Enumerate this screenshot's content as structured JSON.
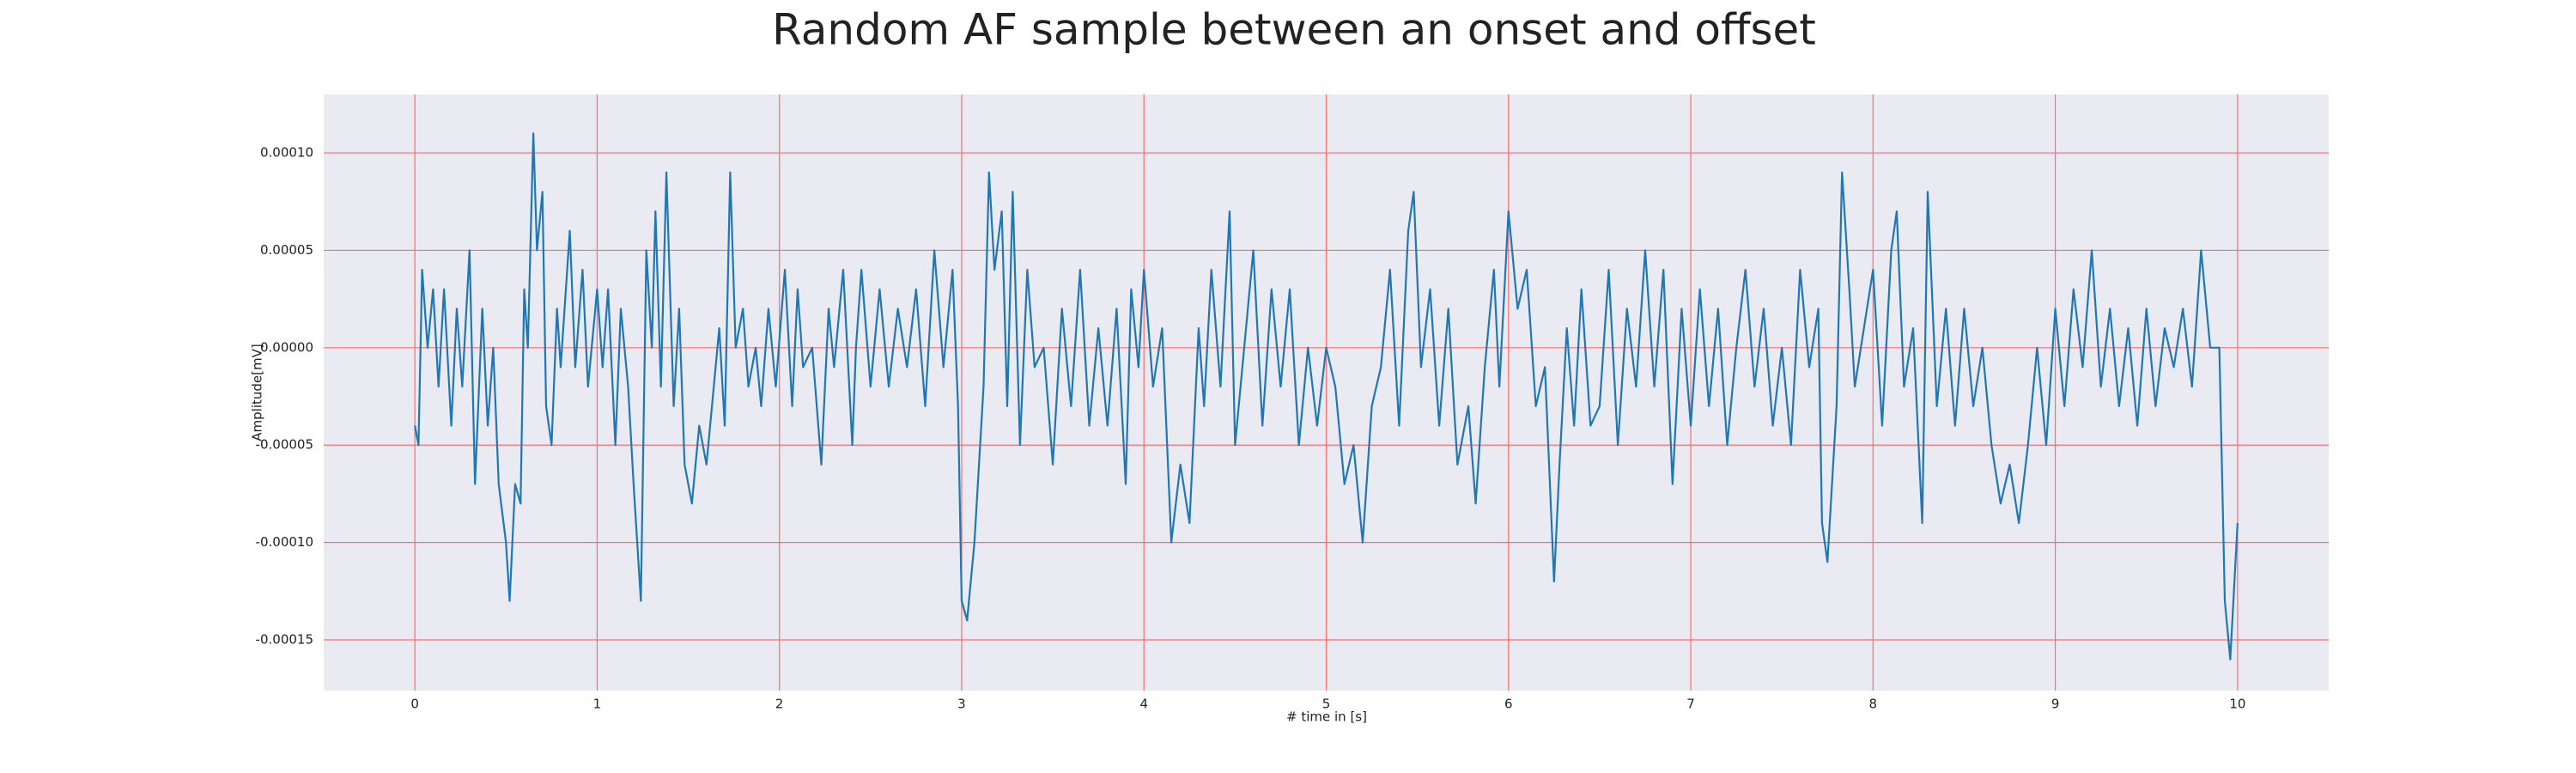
{
  "chart_data": {
    "type": "line",
    "title": "Random AF sample between an onset and offset",
    "xlabel": "# time in [s]",
    "ylabel": "Amplitude[mV]",
    "x": [
      0,
      0.02,
      0.04,
      0.07,
      0.1,
      0.13,
      0.16,
      0.2,
      0.23,
      0.26,
      0.3,
      0.33,
      0.37,
      0.4,
      0.43,
      0.46,
      0.5,
      0.52,
      0.55,
      0.58,
      0.6,
      0.62,
      0.65,
      0.67,
      0.7,
      0.72,
      0.75,
      0.78,
      0.8,
      0.85,
      0.88,
      0.92,
      0.95,
      1.0,
      1.03,
      1.06,
      1.1,
      1.13,
      1.17,
      1.2,
      1.24,
      1.27,
      1.3,
      1.32,
      1.35,
      1.38,
      1.42,
      1.45,
      1.48,
      1.52,
      1.56,
      1.6,
      1.63,
      1.67,
      1.7,
      1.73,
      1.76,
      1.8,
      1.83,
      1.87,
      1.9,
      1.94,
      1.98,
      2.03,
      2.07,
      2.1,
      2.13,
      2.18,
      2.23,
      2.27,
      2.3,
      2.35,
      2.4,
      2.42,
      2.45,
      2.5,
      2.55,
      2.6,
      2.65,
      2.7,
      2.75,
      2.8,
      2.85,
      2.9,
      2.95,
      2.98,
      3.0,
      3.03,
      3.07,
      3.12,
      3.15,
      3.18,
      3.22,
      3.25,
      3.28,
      3.32,
      3.36,
      3.4,
      3.45,
      3.5,
      3.55,
      3.6,
      3.65,
      3.7,
      3.75,
      3.8,
      3.85,
      3.9,
      3.93,
      3.97,
      4.0,
      4.05,
      4.1,
      4.15,
      4.2,
      4.25,
      4.3,
      4.33,
      4.37,
      4.42,
      4.47,
      4.5,
      4.55,
      4.6,
      4.65,
      4.7,
      4.75,
      4.8,
      4.85,
      4.9,
      4.95,
      5.0,
      5.05,
      5.1,
      5.15,
      5.2,
      5.25,
      5.3,
      5.35,
      5.4,
      5.45,
      5.48,
      5.52,
      5.57,
      5.62,
      5.67,
      5.72,
      5.78,
      5.82,
      5.87,
      5.92,
      5.95,
      6.0,
      6.05,
      6.1,
      6.15,
      6.2,
      6.25,
      6.28,
      6.32,
      6.36,
      6.4,
      6.45,
      6.5,
      6.55,
      6.6,
      6.65,
      6.7,
      6.75,
      6.8,
      6.85,
      6.9,
      6.95,
      7.0,
      7.05,
      7.1,
      7.15,
      7.2,
      7.25,
      7.3,
      7.35,
      7.4,
      7.45,
      7.5,
      7.55,
      7.6,
      7.65,
      7.7,
      7.72,
      7.75,
      7.8,
      7.83,
      7.87,
      7.9,
      8.0,
      8.05,
      8.1,
      8.13,
      8.17,
      8.22,
      8.27,
      8.3,
      8.35,
      8.4,
      8.45,
      8.5,
      8.55,
      8.6,
      8.65,
      8.7,
      8.75,
      8.8,
      8.85,
      8.9,
      8.95,
      9.0,
      9.05,
      9.1,
      9.15,
      9.2,
      9.25,
      9.3,
      9.35,
      9.4,
      9.45,
      9.5,
      9.55,
      9.6,
      9.65,
      9.7,
      9.75,
      9.8,
      9.85,
      9.9,
      9.93,
      9.96,
      10.0
    ],
    "series": [
      {
        "color": "#1f77b4",
        "values": [
          -4e-05,
          -5e-05,
          4e-05,
          0.0,
          3e-05,
          -2e-05,
          3e-05,
          -4e-05,
          2e-05,
          -2e-05,
          5e-05,
          -7e-05,
          2e-05,
          -4e-05,
          0.0,
          -7e-05,
          -0.0001,
          -0.00013,
          -7e-05,
          -8e-05,
          3e-05,
          0.0,
          0.00011,
          5e-05,
          8e-05,
          -3e-05,
          -5e-05,
          2e-05,
          -1e-05,
          6e-05,
          -1e-05,
          4e-05,
          -2e-05,
          3e-05,
          -1e-05,
          3e-05,
          -5e-05,
          2e-05,
          -2e-05,
          -7e-05,
          -0.00013,
          5e-05,
          0.0,
          7e-05,
          -2e-05,
          9e-05,
          -3e-05,
          2e-05,
          -6e-05,
          -8e-05,
          -4e-05,
          -6e-05,
          -3e-05,
          1e-05,
          -4e-05,
          9e-05,
          0.0,
          2e-05,
          -2e-05,
          0.0,
          -3e-05,
          2e-05,
          -2e-05,
          4e-05,
          -3e-05,
          3e-05,
          -1e-05,
          0.0,
          -6e-05,
          2e-05,
          -1e-05,
          4e-05,
          -5e-05,
          0.0,
          4e-05,
          -2e-05,
          3e-05,
          -2e-05,
          2e-05,
          -1e-05,
          3e-05,
          -3e-05,
          5e-05,
          -1e-05,
          4e-05,
          -3e-05,
          -0.00013,
          -0.00014,
          -0.0001,
          -2e-05,
          9e-05,
          4e-05,
          7e-05,
          -3e-05,
          8e-05,
          -5e-05,
          4e-05,
          -1e-05,
          0.0,
          -6e-05,
          2e-05,
          -3e-05,
          4e-05,
          -4e-05,
          1e-05,
          -4e-05,
          2e-05,
          -7e-05,
          3e-05,
          -1e-05,
          4e-05,
          -2e-05,
          1e-05,
          -0.0001,
          -6e-05,
          -9e-05,
          1e-05,
          -3e-05,
          4e-05,
          -2e-05,
          7e-05,
          -5e-05,
          0.0,
          5e-05,
          -4e-05,
          3e-05,
          -2e-05,
          3e-05,
          -5e-05,
          0.0,
          -4e-05,
          0.0,
          -2e-05,
          -7e-05,
          -5e-05,
          -0.0001,
          -3e-05,
          -1e-05,
          4e-05,
          -4e-05,
          6e-05,
          8e-05,
          -1e-05,
          3e-05,
          -4e-05,
          2e-05,
          -6e-05,
          -3e-05,
          -8e-05,
          -1e-05,
          4e-05,
          -2e-05,
          7e-05,
          2e-05,
          4e-05,
          -3e-05,
          -1e-05,
          -0.00012,
          -6e-05,
          1e-05,
          -4e-05,
          3e-05,
          -4e-05,
          -3e-05,
          4e-05,
          -5e-05,
          2e-05,
          -2e-05,
          5e-05,
          -2e-05,
          4e-05,
          -7e-05,
          2e-05,
          -4e-05,
          3e-05,
          -3e-05,
          2e-05,
          -5e-05,
          0.0,
          4e-05,
          -2e-05,
          2e-05,
          -4e-05,
          0.0,
          -5e-05,
          4e-05,
          -1e-05,
          2e-05,
          -9e-05,
          -0.00011,
          -3e-05,
          9e-05,
          3e-05,
          -2e-05,
          4e-05,
          -4e-05,
          5e-05,
          7e-05,
          -2e-05,
          1e-05,
          -9e-05,
          8e-05,
          -3e-05,
          2e-05,
          -4e-05,
          2e-05,
          -3e-05,
          0.0,
          -5e-05,
          -8e-05,
          -6e-05,
          -9e-05,
          -5e-05,
          0.0,
          -5e-05,
          2e-05,
          -3e-05,
          3e-05,
          -1e-05,
          5e-05,
          -2e-05,
          2e-05,
          -3e-05,
          1e-05,
          -4e-05,
          2e-05,
          -3e-05,
          1e-05,
          -1e-05,
          2e-05,
          -2e-05,
          5e-05,
          0.0,
          0.0,
          -0.00013,
          -0.00016,
          -9e-05
        ]
      }
    ],
    "xlim": [
      -0.5,
      10.5
    ],
    "ylim": [
      -0.000176,
      0.00013
    ],
    "xticks": [
      0,
      1,
      2,
      3,
      4,
      5,
      6,
      7,
      8,
      9,
      10
    ],
    "yticks": [
      {
        "value": -0.00015,
        "label": "-0.00015"
      },
      {
        "value": -0.0001,
        "label": "-0.00010"
      },
      {
        "value": -5e-05,
        "label": "-0.00005"
      },
      {
        "value": 0,
        "label": "0.00000"
      },
      {
        "value": 5e-05,
        "label": "0.00005"
      },
      {
        "value": 0.0001,
        "label": "0.00010"
      }
    ],
    "grid": true,
    "grid_color": "#ff6b6b",
    "background": "#eaeaf2"
  }
}
